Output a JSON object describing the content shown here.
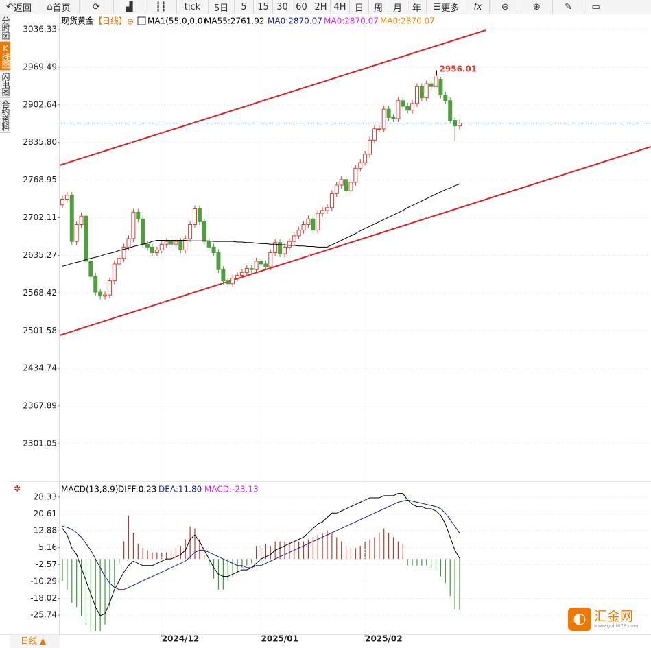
{
  "toolbar": {
    "back": "返回",
    "home": "首页",
    "tick": "tick",
    "periods": [
      "5日",
      "5",
      "15",
      "30",
      "60",
      "2H",
      "4H",
      "日",
      "周",
      "月",
      "年"
    ],
    "more": "更多"
  },
  "sidebar": [
    "分时图",
    "K线图",
    "闪电图",
    "合约资料"
  ],
  "period_button": "日线 ▲",
  "logo": {
    "name": "汇金网",
    "url": "www.gold678.com"
  },
  "chart_data": [
    {
      "type": "candlestick",
      "title": "现货黄金",
      "period": "【日线】",
      "indicator": "MA1(55,0,0,0)",
      "open": [
        2725,
        2735,
        2742,
        2660,
        2690,
        2705,
        2625,
        2598,
        2570,
        2563,
        2565,
        2590,
        2620,
        2630,
        2650,
        2665,
        2712,
        2700,
        2655,
        2650,
        2640,
        2645,
        2655,
        2660,
        2655,
        2660,
        2645,
        2665,
        2690,
        2718,
        2695,
        2660,
        2650,
        2640,
        2610,
        2590,
        2585,
        2595,
        2600,
        2605,
        2612,
        2610,
        2625,
        2620,
        2615,
        2640,
        2658,
        2638,
        2650,
        2660,
        2670,
        2680,
        2690,
        2700,
        2680,
        2710,
        2715,
        2720,
        2745,
        2760,
        2770,
        2750,
        2765,
        2790,
        2800,
        2815,
        2840,
        2860,
        2860,
        2895,
        2880,
        2878,
        2910,
        2900,
        2893,
        2905,
        2935,
        2915,
        2940,
        2935,
        2948,
        2920,
        2910,
        2875,
        2865
      ],
      "high": [
        2741,
        2748,
        2748,
        2696,
        2711,
        2711,
        2631,
        2604,
        2576,
        2571,
        2596,
        2626,
        2636,
        2656,
        2671,
        2718,
        2718,
        2706,
        2661,
        2656,
        2651,
        2661,
        2666,
        2666,
        2666,
        2666,
        2671,
        2696,
        2724,
        2724,
        2701,
        2666,
        2656,
        2646,
        2616,
        2596,
        2601,
        2606,
        2611,
        2618,
        2618,
        2631,
        2631,
        2626,
        2646,
        2664,
        2664,
        2656,
        2666,
        2676,
        2686,
        2696,
        2706,
        2706,
        2716,
        2721,
        2726,
        2751,
        2766,
        2776,
        2776,
        2771,
        2796,
        2806,
        2821,
        2846,
        2866,
        2866,
        2901,
        2901,
        2886,
        2916,
        2916,
        2906,
        2911,
        2941,
        2941,
        2946,
        2946,
        2956.01,
        2952,
        2926,
        2916,
        2881,
        2876
      ],
      "low": [
        2719,
        2729,
        2654,
        2654,
        2684,
        2619,
        2592,
        2564,
        2557,
        2557,
        2559,
        2584,
        2614,
        2624,
        2644,
        2659,
        2694,
        2649,
        2644,
        2634,
        2634,
        2639,
        2649,
        2649,
        2649,
        2639,
        2639,
        2659,
        2684,
        2689,
        2654,
        2644,
        2634,
        2604,
        2584,
        2579,
        2579,
        2589,
        2594,
        2599,
        2604,
        2604,
        2614,
        2609,
        2609,
        2634,
        2632,
        2632,
        2644,
        2654,
        2664,
        2674,
        2684,
        2674,
        2674,
        2704,
        2709,
        2714,
        2739,
        2754,
        2744,
        2744,
        2759,
        2784,
        2794,
        2809,
        2834,
        2854,
        2854,
        2874,
        2872,
        2872,
        2894,
        2887,
        2887,
        2899,
        2909,
        2909,
        2929,
        2929,
        2914,
        2904,
        2869,
        2838,
        2859
      ],
      "close": [
        2735,
        2742,
        2660,
        2690,
        2705,
        2625,
        2598,
        2570,
        2563,
        2565,
        2590,
        2620,
        2630,
        2650,
        2665,
        2712,
        2700,
        2655,
        2650,
        2640,
        2645,
        2655,
        2660,
        2655,
        2660,
        2645,
        2665,
        2690,
        2718,
        2695,
        2660,
        2650,
        2640,
        2610,
        2590,
        2585,
        2595,
        2600,
        2605,
        2612,
        2610,
        2625,
        2620,
        2615,
        2640,
        2658,
        2638,
        2650,
        2660,
        2670,
        2680,
        2690,
        2700,
        2680,
        2710,
        2715,
        2720,
        2745,
        2760,
        2770,
        2750,
        2765,
        2790,
        2800,
        2815,
        2840,
        2860,
        2860,
        2895,
        2880,
        2878,
        2910,
        2900,
        2893,
        2905,
        2935,
        2915,
        2940,
        2935,
        2952,
        2920,
        2910,
        2875,
        2865,
        2870
      ],
      "up_color": "#e03c31",
      "down_color": "#4e9f3d",
      "series": [
        {
          "name": "MA55:2761.92",
          "color": "#000000",
          "values": [
            2616,
            2618,
            2621,
            2623,
            2625,
            2628,
            2630,
            2632,
            2634,
            2637,
            2639,
            2641,
            2644,
            2646,
            2648,
            2651,
            2653,
            2655,
            2657,
            2660,
            2662,
            2662,
            2662,
            2662,
            2662,
            2662,
            2662,
            2661,
            2661,
            2661,
            2661,
            2661,
            2660,
            2660,
            2660,
            2660,
            2660,
            2659,
            2659,
            2658,
            2658,
            2657,
            2656,
            2656,
            2655,
            2655,
            2654,
            2654,
            2653,
            2653,
            2652,
            2652,
            2651,
            2651,
            2650,
            2650,
            2650,
            2654,
            2658,
            2662,
            2666,
            2670,
            2674,
            2679,
            2683,
            2687,
            2691,
            2695,
            2699,
            2703,
            2707,
            2711,
            2715,
            2720,
            2724,
            2728,
            2732,
            2736,
            2740,
            2744,
            2748,
            2752,
            2755,
            2759,
            2761.92
          ]
        }
      ],
      "legend": [
        {
          "name": "MA0:2870.07",
          "color": "#1a1a9c"
        },
        {
          "name": "MA0:2870.07",
          "color": "#e020e0"
        },
        {
          "name": "MA0:2870.07",
          "color": "#f08c00"
        }
      ],
      "ylim": [
        2236.5,
        3054.6
      ],
      "yticks": [
        3036.33,
        2969.49,
        2902.64,
        {
          "value": 2835.8,
          "label": "2835.80"
        },
        2768.95,
        2702.11,
        2635.27,
        2568.42,
        2501.58,
        2434.74,
        2367.89,
        2301.05
      ],
      "grid": true
    },
    {
      "type": "macd",
      "title": "MACD(13,8,9)",
      "categories": [
        null,
        null,
        null,
        null,
        null,
        null,
        null,
        null,
        null,
        null,
        null,
        null,
        null,
        null,
        null,
        null,
        null,
        null,
        null,
        null,
        null,
        "2024/12",
        null,
        null,
        null,
        null,
        null,
        null,
        null,
        null,
        null,
        null,
        null,
        null,
        null,
        null,
        null,
        null,
        null,
        null,
        null,
        null,
        "2025/01",
        null,
        null,
        null,
        null,
        null,
        null,
        null,
        null,
        null,
        null,
        null,
        null,
        null,
        null,
        null,
        null,
        null,
        null,
        null,
        null,
        null,
        "2025/02",
        null,
        null,
        null,
        null,
        null,
        null,
        null,
        null,
        null,
        null,
        null,
        null,
        null,
        null,
        null,
        null,
        null,
        null,
        null,
        null
      ],
      "series": [
        {
          "name": "DIFF:0.23",
          "color": "#000000",
          "values": [
            14,
            11,
            5,
            2,
            -4,
            -10,
            -16,
            -22,
            -26,
            -25,
            -20,
            -14,
            -10,
            -6,
            -3,
            -1,
            -2,
            -3,
            -3,
            -3,
            -2,
            -1,
            0,
            0,
            1,
            2,
            4,
            9,
            11,
            8,
            4,
            0,
            -4,
            -7,
            -8,
            -8,
            -7,
            -6,
            -5,
            -5,
            -4,
            -2,
            0,
            1,
            2,
            4,
            5,
            6,
            7,
            8,
            9,
            10,
            12,
            14,
            16,
            17,
            19,
            21,
            21,
            22,
            23,
            24,
            25,
            26,
            27,
            28,
            28,
            28,
            29,
            29,
            29,
            30,
            30,
            27,
            25,
            24,
            24,
            23,
            23,
            22,
            20,
            16,
            10,
            4,
            0.23
          ]
        },
        {
          "name": "DEA:11.80",
          "color": "#1a1a9c",
          "values": [
            15,
            14.5,
            13.5,
            12,
            10,
            7,
            4,
            0,
            -4,
            -8,
            -11,
            -13,
            -14,
            -14,
            -13,
            -12,
            -11,
            -10,
            -9,
            -8,
            -7,
            -6,
            -5,
            -4,
            -3,
            -2,
            -1,
            1,
            3,
            4,
            4,
            3,
            2,
            1,
            0,
            -1,
            -2,
            -3,
            -3,
            -4,
            -4,
            -3,
            -3,
            -2,
            -1,
            0,
            1,
            2,
            3,
            4,
            5,
            6,
            7,
            8,
            9,
            10,
            11,
            12,
            13,
            14,
            15,
            16,
            17,
            18,
            19,
            20,
            21,
            22,
            23,
            24,
            25,
            26,
            26.5,
            27,
            26.5,
            26,
            25.5,
            25,
            24.5,
            24,
            23,
            21,
            18,
            15,
            11.8
          ]
        }
      ],
      "histogram": {
        "name": "MACD:-23.13",
        "color": "#e020e0",
        "up_color": "#c0392b",
        "down_color": "#3d9a3d",
        "values": [
          -10,
          -14,
          -20,
          -22,
          -26,
          -30,
          -33,
          -33,
          -33,
          -30,
          -22,
          -12,
          -2,
          8,
          20,
          12,
          7,
          5,
          4,
          3,
          3,
          3,
          3,
          4,
          5,
          6,
          9,
          15,
          14,
          9,
          2,
          -3,
          -9,
          -14,
          -14,
          -10,
          -8,
          -6,
          -4,
          -3,
          -2,
          6,
          6,
          7,
          6,
          8,
          8,
          8,
          8,
          8,
          8,
          8,
          9,
          10,
          11,
          12,
          13,
          12,
          10,
          8,
          6,
          5,
          5,
          6,
          8,
          9,
          10,
          12,
          14,
          12,
          10,
          8,
          7,
          -3,
          -3,
          -3,
          -3,
          -3,
          -4,
          -5,
          -8,
          -11,
          -17,
          -23,
          -23.13
        ]
      },
      "ylim": [
        -34.5,
        34.6
      ],
      "yticks": [
        28.33,
        20.61,
        12.88,
        5.16,
        -2.57,
        -10.29,
        -18.02,
        -25.74
      ],
      "grid": true
    }
  ]
}
